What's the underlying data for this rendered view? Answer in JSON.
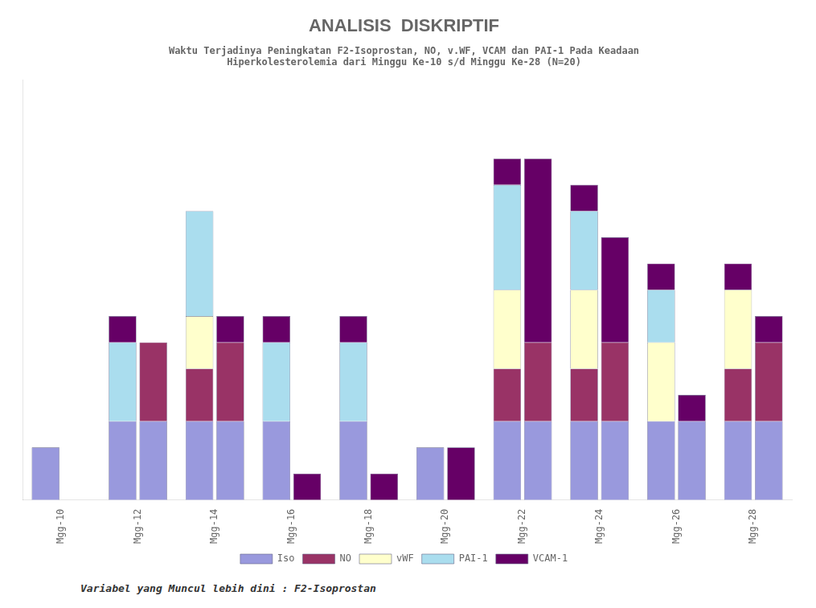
{
  "chart_data": {
    "type": "bar",
    "title": "ANALISIS  DISKRIPTIF",
    "subtitle": [
      "Waktu Terjadinya Peningkatan F2-Isoprostan, NO, v.WF, VCAM dan PAI-1 Pada Keadaan",
      "Hiperkolesterolemia dari Minggu Ke-10 s/d Minggu Ke-28 (N=20)"
    ],
    "footer": "Variabel yang Muncul lebih dini : F2-Isoprostan",
    "categories": [
      "Mgg-10",
      "Mgg-12",
      "Mgg-14",
      "Mgg-16",
      "Mgg-18",
      "Mgg-20",
      "Mgg-22",
      "Mgg-24",
      "Mgg-26",
      "Mgg-28"
    ],
    "series": [
      {
        "name": "Iso",
        "color": "#9999dd",
        "values": [
          1.0,
          1.5,
          1.5,
          1.5,
          1.5,
          1.0,
          1.5,
          1.5,
          1.5,
          1.5
        ],
        "values2": [
          0.0,
          1.5,
          1.5,
          0.0,
          0.0,
          0.0,
          1.5,
          1.5,
          1.5,
          1.5
        ]
      },
      {
        "name": "NO",
        "color": "#993366",
        "values": [
          0.0,
          0.0,
          1.0,
          0.0,
          0.0,
          0.0,
          1.0,
          1.0,
          0.0,
          1.0
        ],
        "values2": [
          0.0,
          1.5,
          1.5,
          0.0,
          0.0,
          0.0,
          1.5,
          1.5,
          0.0,
          1.5
        ]
      },
      {
        "name": "vWF",
        "color": "#ffffcc",
        "values": [
          0.0,
          0.0,
          1.0,
          0.0,
          0.0,
          0.0,
          1.5,
          1.5,
          1.5,
          1.5
        ],
        "values2": [
          0.0,
          0.0,
          0.0,
          0.0,
          0.0,
          0.0,
          0.0,
          0.0,
          0.0,
          0.0
        ]
      },
      {
        "name": "PAI-1",
        "color": "#aaddee",
        "values": [
          0.0,
          1.5,
          2.0,
          1.5,
          1.5,
          0.0,
          2.0,
          1.5,
          1.0,
          0.0
        ],
        "values2": [
          0.0,
          0.0,
          0.0,
          0.0,
          0.0,
          0.0,
          0.0,
          0.0,
          0.0,
          0.0
        ]
      },
      {
        "name": "VCAM-1",
        "color": "#660066",
        "values": [
          0.0,
          0.5,
          0.0,
          0.5,
          0.5,
          0.0,
          0.5,
          0.5,
          0.5,
          0.5
        ],
        "values2": [
          0.0,
          0.0,
          0.5,
          0.5,
          0.5,
          1.0,
          3.5,
          2.0,
          0.5,
          0.5
        ]
      }
    ],
    "stacked": true,
    "ylim": [
      0,
      8.0
    ],
    "yticks": [],
    "tick_labels": "x",
    "grid": false,
    "legend": "bottom"
  }
}
